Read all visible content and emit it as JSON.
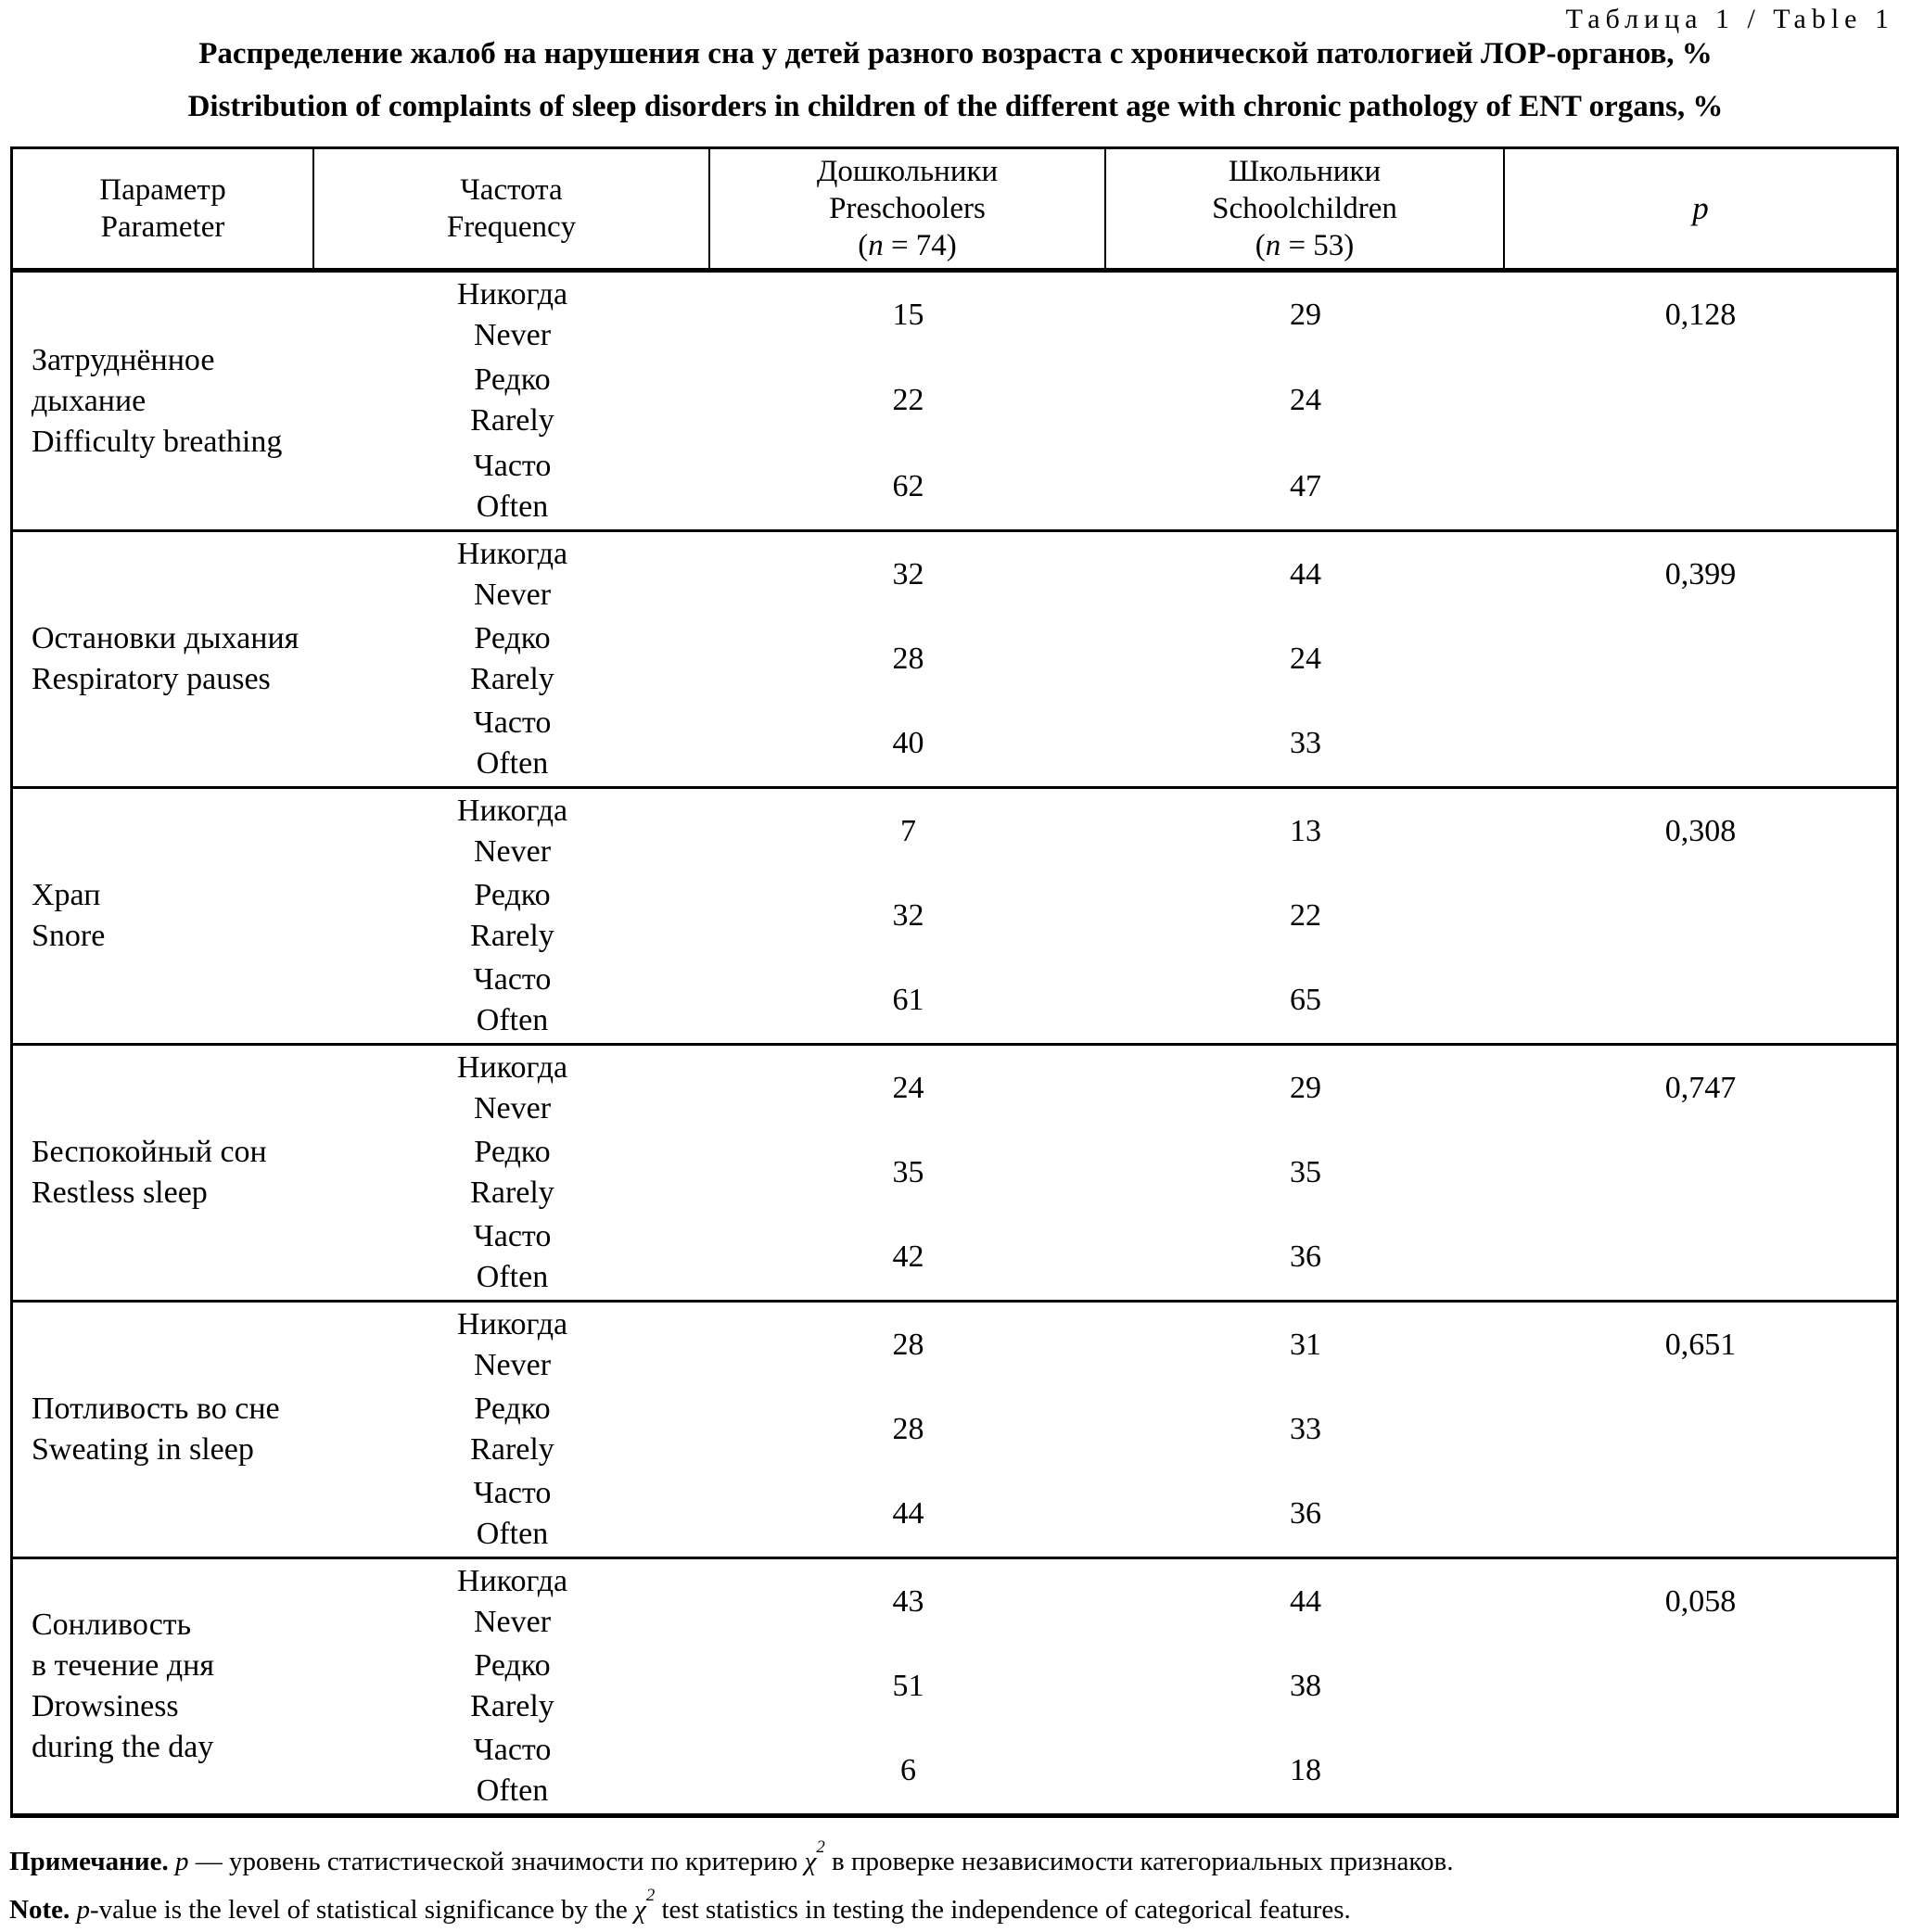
{
  "page": {
    "table_label": "Таблица 1 / Table 1",
    "title_ru": "Распределение жалоб на нарушения сна у детей разного возраста с хронической патологией ЛОР-органов, %",
    "title_en": "Distribution of complaints of sleep disorders in children of the different age with chronic pathology of ENT organs, %"
  },
  "header": {
    "param_ru": "Параметр",
    "param_en": "Parameter",
    "freq_ru": "Частота",
    "freq_en": "Frequency",
    "preschool_ru": "Дошкольники",
    "preschool_en": "Preschoolers",
    "preschool_n_prefix": "(",
    "preschool_n_italic": "n",
    "preschool_n_suffix": " = 74)",
    "school_ru": "Школьники",
    "school_en": "Schoolchildren",
    "school_n_prefix": "(",
    "school_n_italic": "n",
    "school_n_suffix": " = 53)",
    "p_label": "p"
  },
  "groups": [
    {
      "param_lines": [
        "Затруднённое",
        "дыхание",
        "Difficulty breathing"
      ],
      "p": "0,128",
      "rows": [
        {
          "freq_ru": "Никогда",
          "freq_en": "Never",
          "preschoolers": "15",
          "schoolchildren": "29"
        },
        {
          "freq_ru": "Редко",
          "freq_en": "Rarely",
          "preschoolers": "22",
          "schoolchildren": "24"
        },
        {
          "freq_ru": "Часто",
          "freq_en": "Often",
          "preschoolers": "62",
          "schoolchildren": "47"
        }
      ]
    },
    {
      "param_lines": [
        "Остановки дыхания",
        "Respiratory pauses"
      ],
      "p": "0,399",
      "rows": [
        {
          "freq_ru": "Никогда",
          "freq_en": "Never",
          "preschoolers": "32",
          "schoolchildren": "44"
        },
        {
          "freq_ru": "Редко",
          "freq_en": "Rarely",
          "preschoolers": "28",
          "schoolchildren": "24"
        },
        {
          "freq_ru": "Часто",
          "freq_en": "Often",
          "preschoolers": "40",
          "schoolchildren": "33"
        }
      ]
    },
    {
      "param_lines": [
        "Храп",
        "Snore"
      ],
      "p": "0,308",
      "rows": [
        {
          "freq_ru": "Никогда",
          "freq_en": "Never",
          "preschoolers": "7",
          "schoolchildren": "13"
        },
        {
          "freq_ru": "Редко",
          "freq_en": "Rarely",
          "preschoolers": "32",
          "schoolchildren": "22"
        },
        {
          "freq_ru": "Часто",
          "freq_en": "Often",
          "preschoolers": "61",
          "schoolchildren": "65"
        }
      ]
    },
    {
      "param_lines": [
        "Беспокойный сон",
        "Restless sleep"
      ],
      "p": "0,747",
      "rows": [
        {
          "freq_ru": "Никогда",
          "freq_en": "Never",
          "preschoolers": "24",
          "schoolchildren": "29"
        },
        {
          "freq_ru": "Редко",
          "freq_en": "Rarely",
          "preschoolers": "35",
          "schoolchildren": "35"
        },
        {
          "freq_ru": "Часто",
          "freq_en": "Often",
          "preschoolers": "42",
          "schoolchildren": "36"
        }
      ]
    },
    {
      "param_lines": [
        "Потливость во сне",
        "Sweating in sleep"
      ],
      "p": "0,651",
      "rows": [
        {
          "freq_ru": "Никогда",
          "freq_en": "Never",
          "preschoolers": "28",
          "schoolchildren": "31"
        },
        {
          "freq_ru": "Редко",
          "freq_en": "Rarely",
          "preschoolers": "28",
          "schoolchildren": "33"
        },
        {
          "freq_ru": "Часто",
          "freq_en": "Often",
          "preschoolers": "44",
          "schoolchildren": "36"
        }
      ]
    },
    {
      "param_lines": [
        "Сонливость",
        "в течение дня",
        "Drowsiness",
        "during the day"
      ],
      "p": "0,058",
      "rows": [
        {
          "freq_ru": "Никогда",
          "freq_en": "Never",
          "preschoolers": "43",
          "schoolchildren": "44"
        },
        {
          "freq_ru": "Редко",
          "freq_en": "Rarely",
          "preschoolers": "51",
          "schoolchildren": "38"
        },
        {
          "freq_ru": "Часто",
          "freq_en": "Often",
          "preschoolers": "6",
          "schoolchildren": "18"
        }
      ]
    }
  ],
  "note_ru": {
    "label": "Примечание.",
    "p_italic": " p ",
    "text1": "— уровень статистической значимости по критерию ",
    "chi": "χ",
    "chi_sup": "2",
    "text2": " в проверке независимости категориальных признаков."
  },
  "note_en": {
    "label": "Note.",
    "p_italic": " p",
    "text1": "-value is the level of statistical significance by the ",
    "chi": "χ",
    "chi_sup": "2",
    "text2": " test statistics in testing the independence of categorical features."
  }
}
